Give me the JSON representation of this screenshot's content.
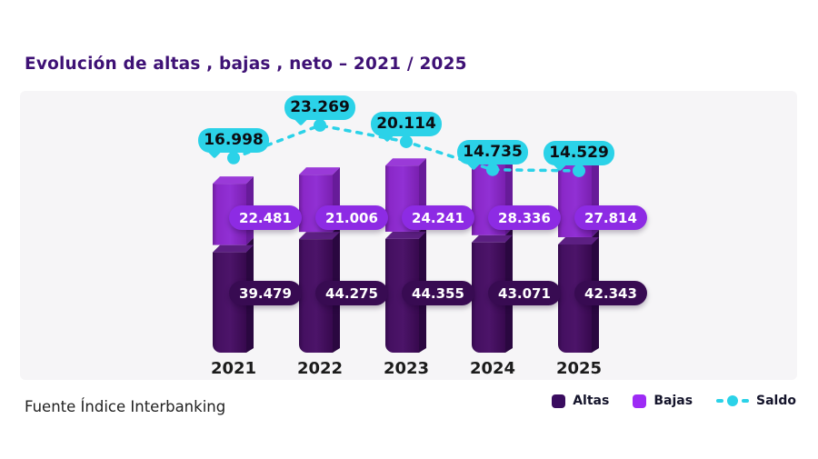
{
  "title": "Evolución de altas , bajas , neto – 2021 / 2025",
  "source": "Fuente Índice Interbanking",
  "legend": {
    "position": "bottom-right",
    "items": [
      {
        "label": "Altas",
        "swatch_color": "#3A0C5F",
        "type": "square"
      },
      {
        "label": "Bajas",
        "swatch_color": "#9D2BF5",
        "type": "square"
      },
      {
        "label": "Saldo",
        "swatch_color": "#2BD2E8",
        "type": "dashed-line-dot"
      }
    ]
  },
  "colors": {
    "title": "#3E1175",
    "panel_bg": "#F6F5F7",
    "saldo": "#2BD2E8",
    "bubble_bg": "#2BD2E8",
    "bubble_text": "#0C0D12",
    "bajas_pill": "#8D2BE4",
    "altas_pill": "#380B52",
    "pill_text": "#FFFFFF",
    "bajas_front": [
      "#6E1E9C",
      "#8A28C8",
      "#9130D4",
      "#7A20B0"
    ],
    "bajas_top": "#9A3AD8",
    "bajas_side": "#671B99",
    "altas_band": "#5C1F82",
    "altas_front": [
      "#340A4D",
      "#451061",
      "#4C1469",
      "#37094E"
    ],
    "altas_side": "#2A0740",
    "year_text": "#1B1B1B",
    "legend_text": "#14142B",
    "source_text": "#222222"
  },
  "chart_data": {
    "type": "bar",
    "subtype": "3d-stacked-columns-with-dotted-line",
    "title": "Evolución de altas , bajas , neto – 2021 / 2025",
    "categories": [
      "2021",
      "2022",
      "2023",
      "2024",
      "2025"
    ],
    "series": [
      {
        "name": "Altas",
        "type": "bar",
        "color": "#471163",
        "values": [
          39479,
          44275,
          44355,
          43071,
          42343
        ],
        "labels": [
          "39.479",
          "44.275",
          "44.355",
          "43.071",
          "42.343"
        ]
      },
      {
        "name": "Bajas",
        "type": "bar",
        "color": "#8D2BE4",
        "values": [
          22481,
          21006,
          24241,
          28336,
          27814
        ],
        "labels": [
          "22.481",
          "21.006",
          "24.241",
          "28.336",
          "27.814"
        ]
      },
      {
        "name": "Saldo",
        "type": "line",
        "style": "dashed",
        "color": "#2BD2E8",
        "values": [
          16998,
          23269,
          20114,
          14735,
          14529
        ],
        "labels": [
          "16.998",
          "23.269",
          "20.114",
          "14.735",
          "14.529"
        ]
      }
    ],
    "grid": false,
    "axes": "none — values shown as data labels on bars and line bubbles",
    "legend_position": "bottom-right"
  }
}
